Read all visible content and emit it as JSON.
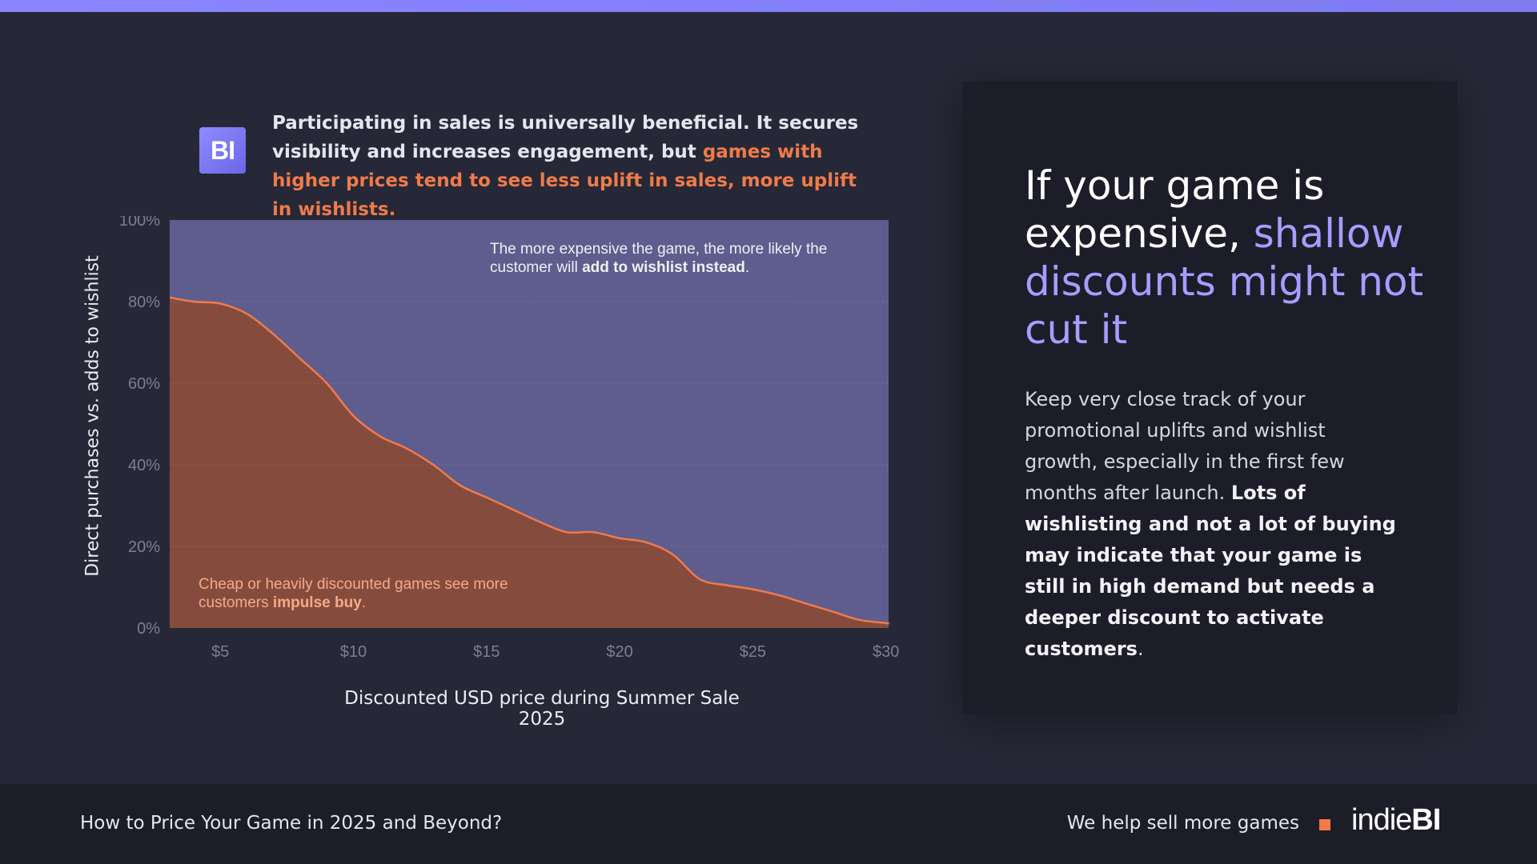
{
  "colors": {
    "background": "#262837",
    "accent_purple": "#8a85ff",
    "wishlist_area": "#5e5d8e",
    "purchase_area": "#854c3e",
    "purchase_line": "#f07a4a",
    "highlight_orange": "#ef7b4a"
  },
  "intro": {
    "logo_text": "BI",
    "text_plain": "Participating in sales is universally beneficial. It secures visibility and increases engagement, but ",
    "text_highlight": "games with higher prices tend to see less uplift in sales, more uplift in wishlists."
  },
  "chart_data": {
    "type": "area",
    "xlabel": "Discounted USD price during Summer Sale 2025",
    "ylabel": "Direct purchases vs. adds to wishlist",
    "x_ticks": [
      "$5",
      "$10",
      "$15",
      "$20",
      "$25",
      "$30"
    ],
    "x_tick_values": [
      5,
      10,
      15,
      20,
      25,
      30
    ],
    "y_ticks": [
      "0%",
      "20%",
      "40%",
      "60%",
      "80%",
      "100%"
    ],
    "y_tick_values": [
      0,
      20,
      40,
      60,
      80,
      100
    ],
    "xlim": [
      3.1,
      30.1
    ],
    "ylim": [
      0,
      100
    ],
    "grid": true,
    "series": [
      {
        "name": "Direct purchases",
        "x": [
          3.1,
          4,
          5,
          6,
          7,
          8,
          9,
          10,
          11,
          12,
          13,
          14,
          15,
          16,
          17,
          18,
          19,
          20,
          21,
          22,
          23,
          24,
          25,
          26,
          27,
          28,
          29,
          30,
          30.1
        ],
        "y": [
          81,
          80,
          79.5,
          77,
          72,
          66,
          60,
          52,
          47,
          44,
          40,
          35,
          32,
          29,
          26,
          23.5,
          23.5,
          22,
          21,
          18,
          12,
          10.5,
          9.5,
          8,
          6,
          4,
          2,
          1.2,
          1
        ]
      },
      {
        "name": "Adds to wishlist",
        "fill_to": 100
      }
    ],
    "annotations": {
      "top_plain": "The more expensive the game, the more likely the customer will ",
      "top_bold": "add to wishlist instead",
      "top_end": ".",
      "bottom_plain": "Cheap or heavily discounted games see more customers ",
      "bottom_bold": "impulse buy",
      "bottom_end": "."
    }
  },
  "card": {
    "headline_plain": "If your game is expensive, ",
    "headline_accent": "shallow discounts might not cut it",
    "body_plain": "Keep very close track of your promotional uplifts and wishlist growth, especially in the first few months after launch. ",
    "body_bold": "Lots of wishlisting and not a lot of buying may indicate that your game is still in high demand but needs a deeper discount to activate customers",
    "body_end": "."
  },
  "footer": {
    "title": "How to Price Your Game in 2025 and Beyond?",
    "tagline": "We help sell more games",
    "brand_light": "indie",
    "brand_bold": "BI"
  }
}
